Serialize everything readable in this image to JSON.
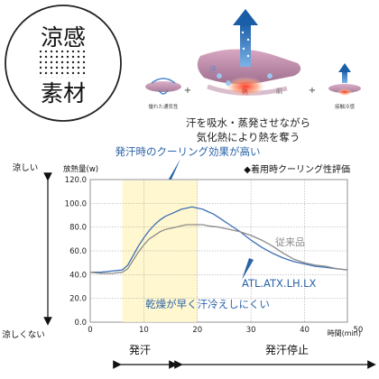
{
  "badge": {
    "line1": "涼感",
    "line2": "素材"
  },
  "illustration": {
    "label_left": "優れた通気性",
    "label_right": "接触冷感",
    "label_sweat": "汗",
    "label_heat": "熱",
    "label_skin": "肌",
    "plus": "+",
    "caption_line1": "汗を吸水・蒸発させながら",
    "caption_line2": "気化熱により熱を奪う"
  },
  "annotations": {
    "top_callout": "発汗時のクーリング効果が高い",
    "bottom_callout": "乾燥が早く汗冷えしにくい",
    "y_top": "涼しい",
    "y_bottom": "涼しくない",
    "eval_title": "◆着用時クーリング性評価",
    "phase_sweat": "発汗",
    "phase_stop": "発汗停止"
  },
  "chart_data": {
    "type": "line",
    "ylabel": "放熱量(w)",
    "xlabel": "時間(min)",
    "xlim": [
      0,
      48
    ],
    "ylim": [
      0,
      120
    ],
    "xticks": [
      "0",
      "10",
      "20",
      "30",
      "40",
      "50"
    ],
    "yticks": [
      "0.0",
      "20.0",
      "40.0",
      "60.0",
      "80.0",
      "100.0",
      "120.0"
    ],
    "highlight_span": [
      6,
      20
    ],
    "grid": true,
    "series": [
      {
        "name": "ATL.ATX.LH.LX",
        "color": "#3d6fb6",
        "x": [
          0,
          2,
          4,
          6,
          7,
          8,
          9,
          10,
          11,
          12,
          13,
          14,
          15,
          16,
          17,
          18,
          19,
          20,
          21,
          22,
          23,
          24,
          25,
          26,
          28,
          30,
          32,
          34,
          36,
          38,
          40,
          42,
          44,
          46,
          48
        ],
        "y": [
          42,
          42,
          43,
          44,
          48,
          56,
          64,
          71,
          77,
          82,
          86,
          89,
          91,
          93,
          95,
          96,
          97,
          96,
          95,
          93,
          91,
          88,
          85,
          82,
          76,
          69,
          63,
          58,
          54,
          51,
          49,
          47,
          46,
          45,
          44
        ]
      },
      {
        "name": "従来品",
        "color": "#8c8c8c",
        "x": [
          0,
          2,
          4,
          6,
          7,
          8,
          9,
          10,
          11,
          12,
          13,
          14,
          15,
          16,
          17,
          18,
          19,
          20,
          21,
          22,
          24,
          26,
          28,
          30,
          32,
          34,
          36,
          38,
          40,
          42,
          44,
          46,
          48
        ],
        "y": [
          42,
          41,
          41,
          42,
          45,
          52,
          59,
          65,
          70,
          73,
          76,
          78,
          79,
          80,
          81,
          82,
          82,
          82,
          82,
          81,
          80,
          78,
          76,
          73,
          69,
          64,
          58,
          53,
          50,
          48,
          47,
          45,
          44
        ]
      }
    ]
  }
}
